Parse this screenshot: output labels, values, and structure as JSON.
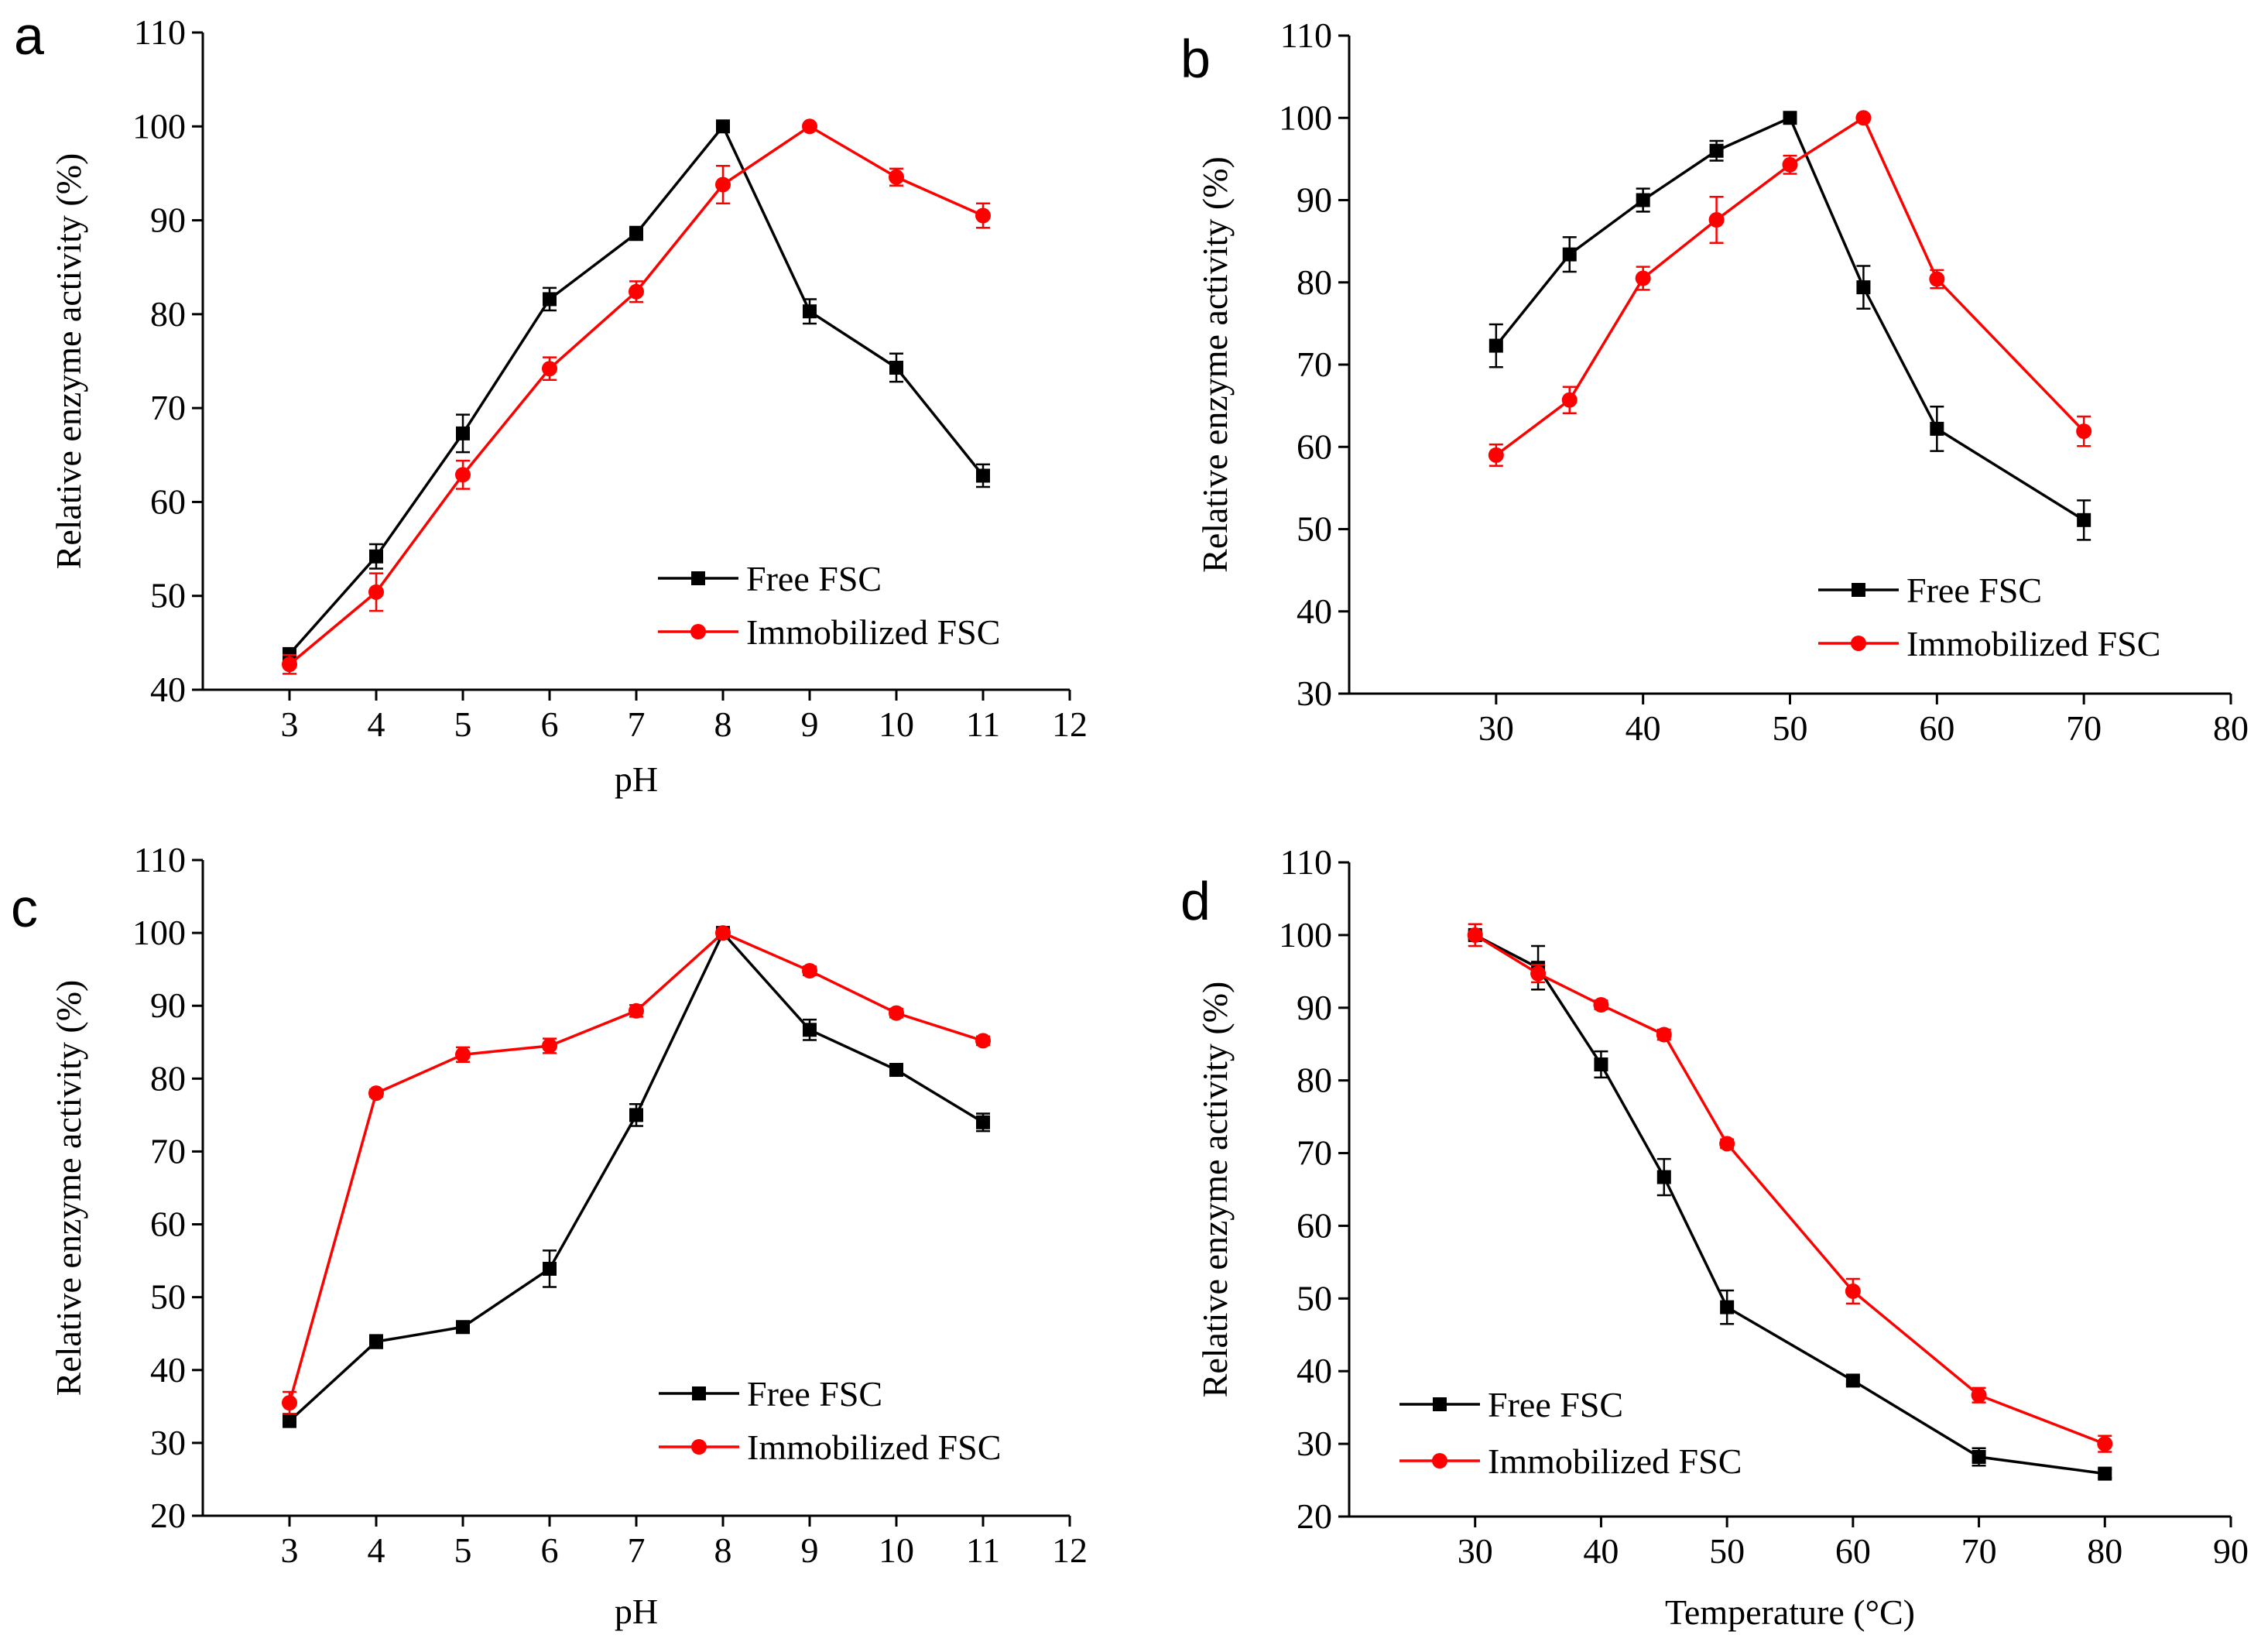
{
  "chart_data": [
    {
      "type": "line",
      "panel_label": "a",
      "xlabel": "pH",
      "ylabel": "Relative enzyme activity (%)",
      "xlim": [
        2,
        12
      ],
      "ylim": [
        40,
        110
      ],
      "xticks": [
        3,
        4,
        5,
        6,
        7,
        8,
        9,
        10,
        11,
        12
      ],
      "yticks": [
        40,
        50,
        60,
        70,
        80,
        90,
        100,
        110
      ],
      "legend_position": "bottom-right",
      "series": [
        {
          "name": "Free FSC",
          "color": "#000000",
          "marker": "square",
          "x": [
            3,
            4,
            5,
            6,
            7,
            8,
            9,
            10,
            11
          ],
          "y": [
            43.8,
            54.2,
            67.3,
            81.6,
            88.6,
            100,
            80.3,
            74.3,
            62.8
          ],
          "err": [
            0.6,
            1.3,
            2.0,
            1.2,
            0.7,
            0.3,
            1.3,
            1.5,
            1.2
          ]
        },
        {
          "name": "Immobilized FSC",
          "color": "#ff0000",
          "marker": "circle",
          "x": [
            3,
            4,
            5,
            6,
            7,
            8,
            9,
            10,
            11
          ],
          "y": [
            42.7,
            50.4,
            62.9,
            74.2,
            82.4,
            93.8,
            100,
            94.6,
            90.5
          ],
          "err": [
            1.0,
            2.0,
            1.5,
            1.2,
            1.1,
            2.0,
            0.3,
            0.9,
            1.3
          ]
        }
      ]
    },
    {
      "type": "line",
      "panel_label": "b",
      "xlabel": "",
      "ylabel": "Relative enzyme activity (%)",
      "xlim": [
        20,
        80
      ],
      "ylim": [
        30,
        110
      ],
      "xticks": [
        30,
        40,
        50,
        60,
        70,
        80
      ],
      "yticks": [
        30,
        40,
        50,
        60,
        70,
        80,
        90,
        100,
        110
      ],
      "legend_position": "bottom-right",
      "series": [
        {
          "name": "Free FSC",
          "color": "#000000",
          "marker": "square",
          "x": [
            30,
            35,
            40,
            45,
            50,
            55,
            60,
            70
          ],
          "y": [
            72.3,
            83.4,
            90.0,
            96.0,
            100,
            79.4,
            62.2,
            51.1
          ],
          "err": [
            2.6,
            2.1,
            1.4,
            1.2,
            0.3,
            2.6,
            2.7,
            2.4
          ]
        },
        {
          "name": "Immobilized FSC",
          "color": "#ff0000",
          "marker": "circle",
          "x": [
            30,
            35,
            40,
            45,
            50,
            55,
            60,
            70
          ],
          "y": [
            59.0,
            65.7,
            80.5,
            87.6,
            94.3,
            100,
            80.4,
            61.9
          ],
          "err": [
            1.3,
            1.6,
            1.4,
            2.8,
            1.1,
            0.3,
            1.1,
            1.8
          ]
        }
      ]
    },
    {
      "type": "line",
      "panel_label": "c",
      "xlabel": "pH",
      "ylabel": "Relative enzyme activity (%)",
      "xlim": [
        2,
        12
      ],
      "ylim": [
        20,
        110
      ],
      "xticks": [
        3,
        4,
        5,
        6,
        7,
        8,
        9,
        10,
        11,
        12
      ],
      "yticks": [
        20,
        30,
        40,
        50,
        60,
        70,
        80,
        90,
        100,
        110
      ],
      "legend_position": "bottom-right",
      "series": [
        {
          "name": "Free FSC",
          "color": "#000000",
          "marker": "square",
          "x": [
            3,
            4,
            5,
            6,
            7,
            8,
            9,
            10,
            11
          ],
          "y": [
            33.0,
            43.9,
            45.9,
            53.9,
            75.0,
            100,
            86.7,
            81.2,
            74.0
          ],
          "err": [
            0.8,
            0.9,
            0.8,
            2.5,
            1.5,
            0.3,
            1.4,
            0.6,
            1.2
          ]
        },
        {
          "name": "Immobilized FSC",
          "color": "#ff0000",
          "marker": "circle",
          "x": [
            3,
            4,
            5,
            6,
            7,
            8,
            9,
            10,
            11
          ],
          "y": [
            35.5,
            78.0,
            83.3,
            84.5,
            89.3,
            100,
            94.8,
            89.0,
            85.2
          ],
          "err": [
            1.5,
            0.5,
            1.0,
            1.0,
            0.8,
            0.3,
            0.6,
            0.6,
            0.6
          ]
        }
      ]
    },
    {
      "type": "line",
      "panel_label": "d",
      "xlabel": "Temperature (°C)",
      "ylabel": "Relative enzyme activity (%)",
      "xlim": [
        20,
        90
      ],
      "ylim": [
        20,
        110
      ],
      "xticks": [
        30,
        40,
        50,
        60,
        70,
        80,
        90
      ],
      "yticks": [
        20,
        30,
        40,
        50,
        60,
        70,
        80,
        90,
        100,
        110
      ],
      "legend_position": "bottom-left",
      "series": [
        {
          "name": "Free FSC",
          "color": "#000000",
          "marker": "square",
          "x": [
            30,
            35,
            40,
            45,
            50,
            60,
            70,
            80
          ],
          "y": [
            100,
            95.5,
            82.2,
            66.7,
            48.8,
            38.7,
            28.2,
            25.9
          ],
          "err": [
            0.5,
            3.0,
            1.8,
            2.5,
            2.3,
            0.5,
            1.2,
            0.6
          ]
        },
        {
          "name": "Immobilized FSC",
          "color": "#ff0000",
          "marker": "circle",
          "x": [
            30,
            35,
            40,
            45,
            50,
            60,
            70,
            80
          ],
          "y": [
            100,
            94.7,
            90.4,
            86.3,
            71.3,
            51.0,
            36.7,
            30.0
          ],
          "err": [
            1.5,
            1.2,
            0.6,
            0.7,
            0.6,
            1.7,
            1.0,
            1.1
          ]
        }
      ]
    }
  ]
}
